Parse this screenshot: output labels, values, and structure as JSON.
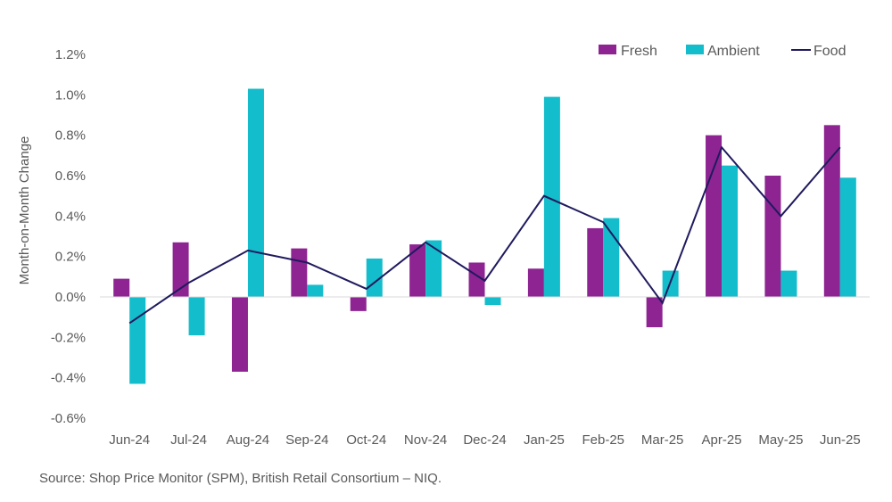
{
  "chart_data": {
    "type": "bar",
    "title": "",
    "xlabel": "",
    "ylabel": "Month-on-Month Change",
    "ylim": [
      -0.6,
      1.2
    ],
    "yticks": [
      "-0.6%",
      "-0.4%",
      "-0.2%",
      "0.0%",
      "0.2%",
      "0.4%",
      "0.6%",
      "0.8%",
      "1.0%",
      "1.2%"
    ],
    "categories": [
      "Jun-24",
      "Jul-24",
      "Aug-24",
      "Sep-24",
      "Oct-24",
      "Nov-24",
      "Dec-24",
      "Jan-25",
      "Feb-25",
      "Mar-25",
      "Apr-25",
      "May-25",
      "Jun-25"
    ],
    "series": [
      {
        "name": "Fresh",
        "kind": "bar",
        "color": "#8E2492",
        "values": [
          0.09,
          0.27,
          -0.37,
          0.24,
          -0.07,
          0.26,
          0.17,
          0.14,
          0.34,
          -0.15,
          0.8,
          0.6,
          0.85
        ]
      },
      {
        "name": "Ambient",
        "kind": "bar",
        "color": "#14BDCB",
        "values": [
          -0.43,
          -0.19,
          1.03,
          0.06,
          0.19,
          0.28,
          -0.04,
          0.99,
          0.39,
          0.13,
          0.65,
          0.13,
          0.59
        ]
      },
      {
        "name": "Food",
        "kind": "line",
        "color": "#1F1A5E",
        "values": [
          -0.13,
          0.07,
          0.23,
          0.17,
          0.04,
          0.27,
          0.08,
          0.5,
          0.37,
          -0.03,
          0.74,
          0.4,
          0.74
        ]
      }
    ],
    "legend_position": "top-right",
    "grid": false
  },
  "source_text": "Source: Shop Price Monitor (SPM), British Retail Consortium – NIQ."
}
